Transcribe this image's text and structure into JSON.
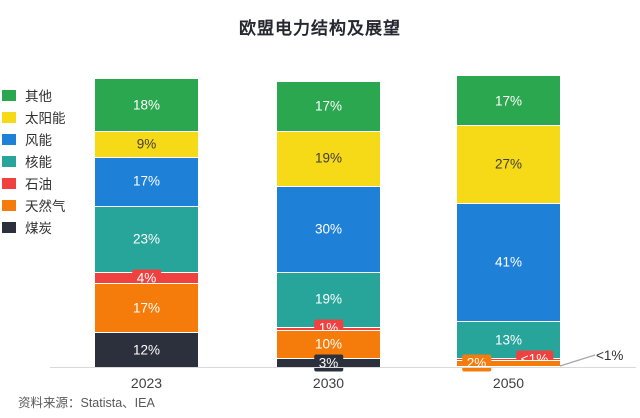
{
  "title": "欧盟电力结构及展望",
  "source": "资料来源：Statista、IEA",
  "chart_data": {
    "type": "bar",
    "subtype": "stacked-100-percent-column",
    "title": "欧盟电力结构及展望",
    "categories": [
      "2023",
      "2030",
      "2050"
    ],
    "series": [
      {
        "name": "其他",
        "color": "#2BA84F",
        "values": [
          18,
          17,
          17
        ],
        "labels": [
          "18%",
          "17%",
          "17%"
        ]
      },
      {
        "name": "太阳能",
        "color": "#F6D917",
        "values": [
          9,
          19,
          27
        ],
        "labels": [
          "9%",
          "19%",
          "27%"
        ]
      },
      {
        "name": "风能",
        "color": "#1F80D8",
        "values": [
          17,
          30,
          41
        ],
        "labels": [
          "17%",
          "30%",
          "41%"
        ]
      },
      {
        "name": "核能",
        "color": "#28A59B",
        "values": [
          23,
          19,
          13
        ],
        "labels": [
          "23%",
          "19%",
          "13%"
        ]
      },
      {
        "name": "石油",
        "color": "#F04141",
        "values": [
          4,
          1,
          0.6
        ],
        "labels": [
          "4%",
          "1%",
          "<1%"
        ]
      },
      {
        "name": "天然气",
        "color": "#F57C0B",
        "values": [
          17,
          10,
          2
        ],
        "labels": [
          "17%",
          "10%",
          "2%"
        ]
      },
      {
        "name": "煤炭",
        "color": "#2C2F3C",
        "values": [
          12,
          3,
          0.4
        ],
        "labels": [
          "12%",
          "3%",
          "<1%"
        ]
      }
    ],
    "outside_label": {
      "text": "<1%",
      "series": "煤炭",
      "category": "2050"
    },
    "legend_position": "left",
    "gridlines": false,
    "axis_line_color": "#D9D9D9",
    "source": "资料来源：Statista、IEA"
  }
}
